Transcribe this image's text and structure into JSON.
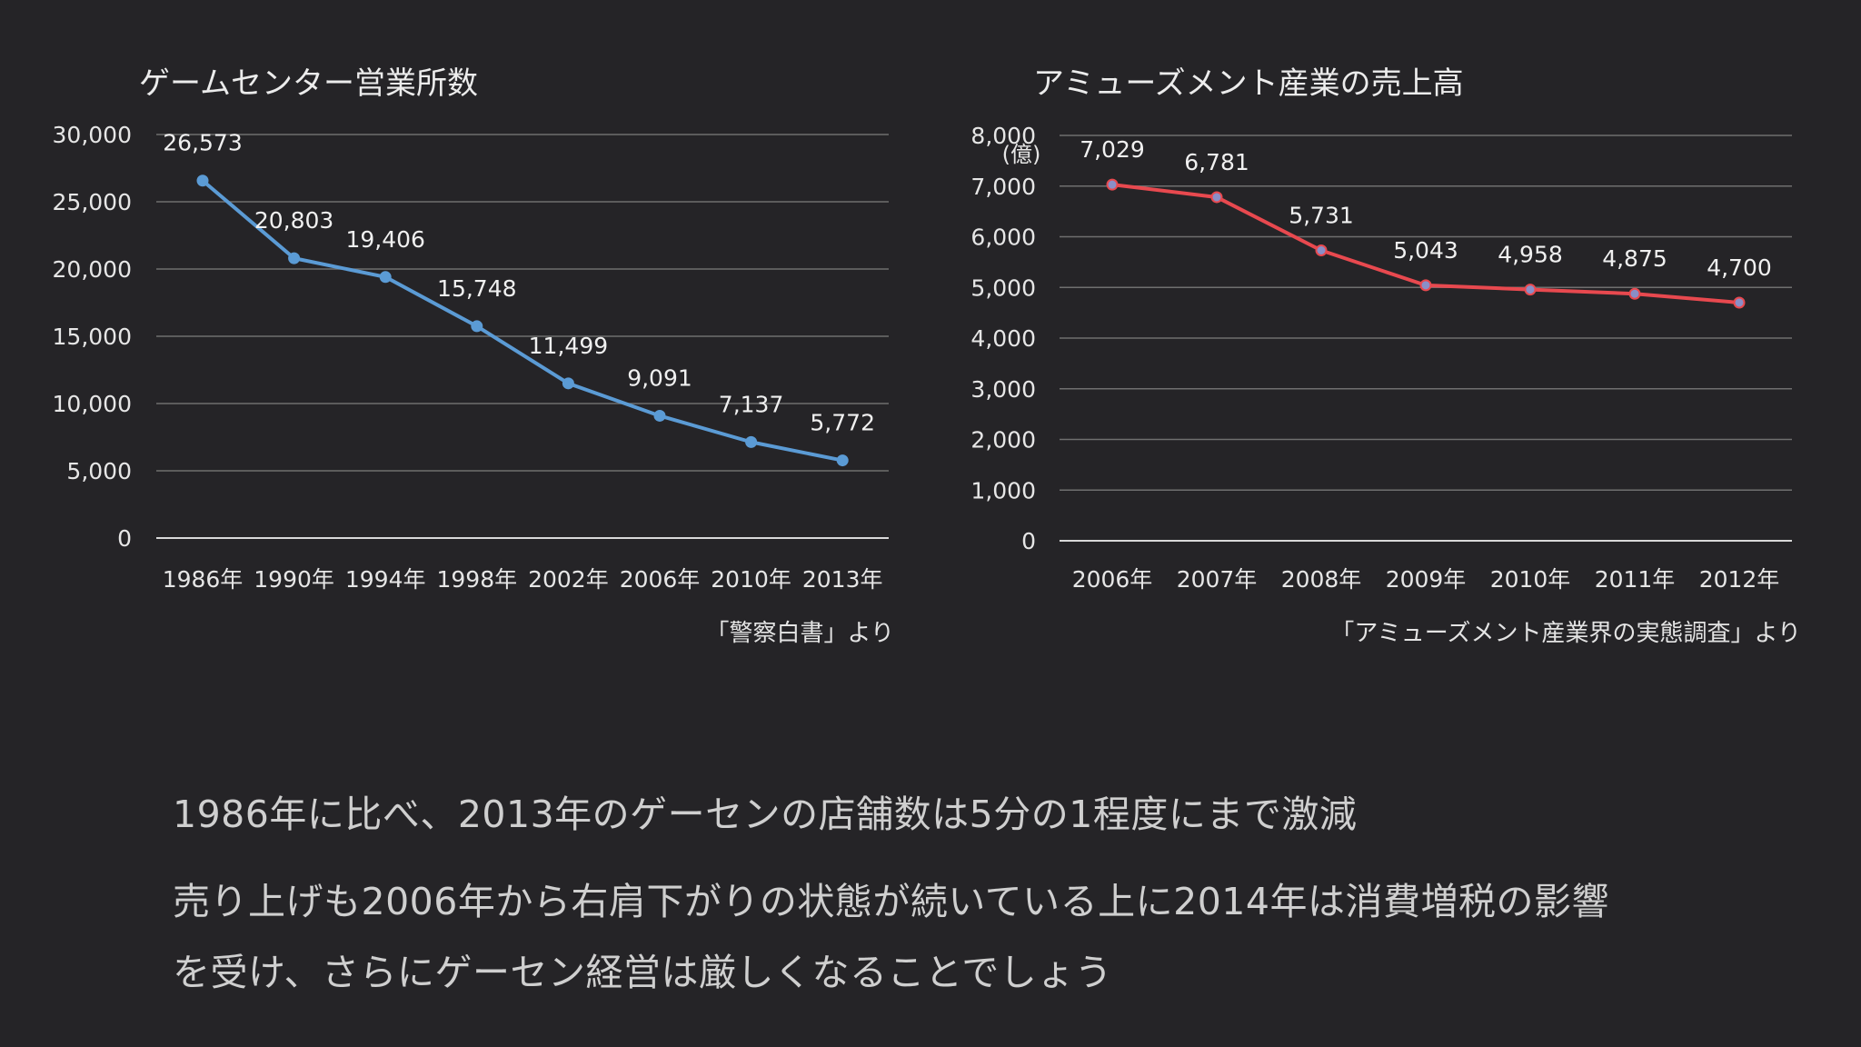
{
  "summary": {
    "line1": "1986年に比べ、2013年のゲーセンの店舗数は5分の1程度にまで激減",
    "line2": "売り上げも2006年から右肩下がりの状態が続いている上に2014年は消費増税の影響",
    "line3": "を受け、さらにゲーセン経営は厳しくなることでしょう"
  },
  "chart_data": [
    {
      "type": "line",
      "title": "ゲームセンター営業所数",
      "source": "「警察白書」より",
      "categories": [
        "1986年",
        "1990年",
        "1994年",
        "1998年",
        "2002年",
        "2006年",
        "2010年",
        "2013年"
      ],
      "values": [
        26573,
        20803,
        19406,
        15748,
        11499,
        9091,
        7137,
        5772
      ],
      "data_labels": [
        "26,573",
        "20,803",
        "19,406",
        "15,748",
        "11,499",
        "9,091",
        "7,137",
        "5,772"
      ],
      "yticks": [
        "0",
        "5,000",
        "10,000",
        "15,000",
        "20,000",
        "25,000",
        "30,000"
      ],
      "ylim": [
        0,
        30000
      ],
      "grid": true,
      "color": "#5b9bd5"
    },
    {
      "type": "line",
      "title": "アミューズメント産業の売上高",
      "source": "「アミューズメント産業界の実態調査」より",
      "unit_label": "(億)",
      "categories": [
        "2006年",
        "2007年",
        "2008年",
        "2009年",
        "2010年",
        "2011年",
        "2012年"
      ],
      "values": [
        7029,
        6781,
        5731,
        5043,
        4958,
        4875,
        4700
      ],
      "data_labels": [
        "7,029",
        "6,781",
        "5,731",
        "5,043",
        "4,958",
        "4,875",
        "4,700"
      ],
      "yticks": [
        "0",
        "1,000",
        "2,000",
        "3,000",
        "4,000",
        "5,000",
        "6,000",
        "7,000",
        "8,000"
      ],
      "ylim": [
        0,
        8000
      ],
      "grid": true,
      "color": "#e8494f"
    }
  ]
}
